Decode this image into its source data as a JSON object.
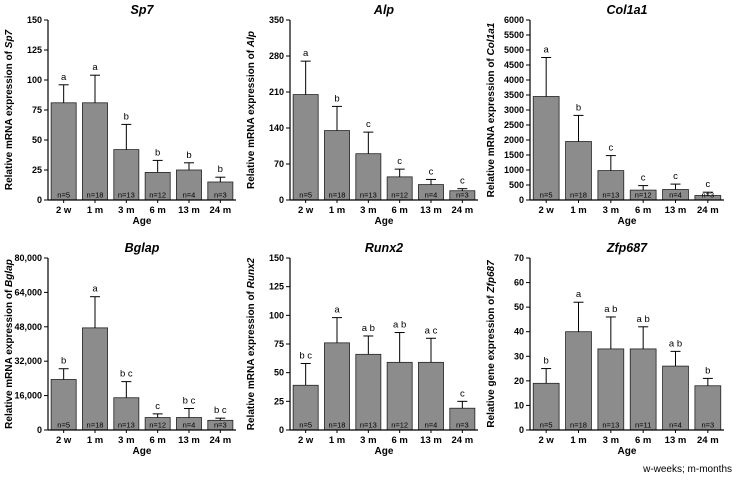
{
  "footnote": "w-weeks; m-months",
  "chart_data": [
    {
      "type": "bar",
      "title": "Sp7",
      "ylabel_prefix": "Relative mRNA expression of ",
      "xlabel": "Age",
      "categories": [
        "2 w",
        "1 m",
        "3 m",
        "6 m",
        "13 m",
        "24 m"
      ],
      "values": [
        81,
        81,
        42,
        23,
        25,
        15
      ],
      "errors": [
        96,
        104,
        63,
        33,
        31,
        19
      ],
      "n_labels": [
        "n=5",
        "n=18",
        "n=13",
        "n=12",
        "n=4",
        "n=3"
      ],
      "letters": [
        "a",
        "a",
        "b",
        "b",
        "b",
        "b"
      ],
      "yticks": [
        "0",
        "25",
        "50",
        "75",
        "100",
        "125",
        "150"
      ],
      "ylim": [
        0,
        150
      ],
      "bar_color": "#8c8c8c"
    },
    {
      "type": "bar",
      "title": "Alp",
      "ylabel_prefix": "Relative mRNA expression of ",
      "xlabel": "Age",
      "categories": [
        "2 w",
        "1 m",
        "3 m",
        "6 m",
        "13 m",
        "24 m"
      ],
      "values": [
        205,
        135,
        90,
        45,
        30,
        18
      ],
      "errors": [
        270,
        182,
        132,
        60,
        40,
        22
      ],
      "n_labels": [
        "n=5",
        "n=18",
        "n=13",
        "n=12",
        "n=4",
        "n=3"
      ],
      "letters": [
        "a",
        "b",
        "c",
        "c",
        "c",
        "c"
      ],
      "yticks": [
        "0",
        "70",
        "140",
        "210",
        "280",
        "350"
      ],
      "ylim": [
        0,
        350
      ],
      "bar_color": "#8c8c8c"
    },
    {
      "type": "bar",
      "title": "Col1a1",
      "ylabel_prefix": "Relative mRNA expression of ",
      "xlabel": "Age",
      "categories": [
        "2 w",
        "1 m",
        "3 m",
        "6 m",
        "13 m",
        "24 m"
      ],
      "values": [
        3450,
        1950,
        980,
        330,
        350,
        150
      ],
      "errors": [
        4750,
        2820,
        1480,
        480,
        530,
        260
      ],
      "n_labels": [
        "n=5",
        "n=18",
        "n=13",
        "n=12",
        "n=4",
        "n=3"
      ],
      "letters": [
        "a",
        "b",
        "c",
        "c",
        "c",
        "c"
      ],
      "yticks": [
        "0",
        "500",
        "1000",
        "1500",
        "2000",
        "2500",
        "3000",
        "3500",
        "4000",
        "4500",
        "5000",
        "5500",
        "6000"
      ],
      "ylim": [
        0,
        6000
      ],
      "bar_color": "#8c8c8c"
    },
    {
      "type": "bar",
      "title": "Bglap",
      "ylabel_prefix": "Relative mRNA expression of ",
      "xlabel": "Age",
      "categories": [
        "2 w",
        "1 m",
        "3 m",
        "6 m",
        "13 m",
        "24 m"
      ],
      "values": [
        23500,
        47500,
        15000,
        5800,
        5800,
        4500
      ],
      "errors": [
        28500,
        62000,
        22500,
        7500,
        10000,
        5500
      ],
      "n_labels": [
        "n=5",
        "n=18",
        "n=13",
        "n=12",
        "n=4",
        "n=3"
      ],
      "letters": [
        "b",
        "a",
        "b c",
        "c",
        "b c",
        "b c"
      ],
      "yticks": [
        "0",
        "16,000",
        "32,000",
        "48,000",
        "64,000",
        "80,000"
      ],
      "ylim": [
        0,
        80000
      ],
      "bar_color": "#8c8c8c"
    },
    {
      "type": "bar",
      "title": "Runx2",
      "ylabel_prefix": "Relative mRNA expression of ",
      "xlabel": "Age",
      "categories": [
        "2 w",
        "1 m",
        "3 m",
        "6 m",
        "13 m",
        "24 m"
      ],
      "values": [
        39,
        76,
        66,
        59,
        59,
        19
      ],
      "errors": [
        58,
        98,
        82,
        85,
        80,
        25
      ],
      "n_labels": [
        "n=5",
        "n=18",
        "n=13",
        "n=12",
        "n=4",
        "n=3"
      ],
      "letters": [
        "b c",
        "a",
        "a b",
        "a b",
        "a c",
        "c"
      ],
      "yticks": [
        "0",
        "25",
        "50",
        "75",
        "100",
        "125",
        "150"
      ],
      "ylim": [
        0,
        150
      ],
      "bar_color": "#8c8c8c"
    },
    {
      "type": "bar",
      "title": "Zfp687",
      "ylabel_prefix": "Relative gene expression of ",
      "xlabel": "Age",
      "categories": [
        "2 w",
        "1 m",
        "3 m",
        "6 m",
        "13 m",
        "24 m"
      ],
      "values": [
        19,
        40,
        33,
        33,
        26,
        18
      ],
      "errors": [
        25,
        52,
        46,
        42,
        32,
        21
      ],
      "n_labels": [
        "n=5",
        "n=18",
        "n=13",
        "n=11",
        "n=4",
        "n=3"
      ],
      "letters": [
        "b",
        "a",
        "a b",
        "a b",
        "a b",
        "b"
      ],
      "yticks": [
        "0",
        "10",
        "20",
        "30",
        "40",
        "50",
        "60",
        "70"
      ],
      "ylim": [
        0,
        70
      ],
      "bar_color": "#8c8c8c"
    }
  ]
}
